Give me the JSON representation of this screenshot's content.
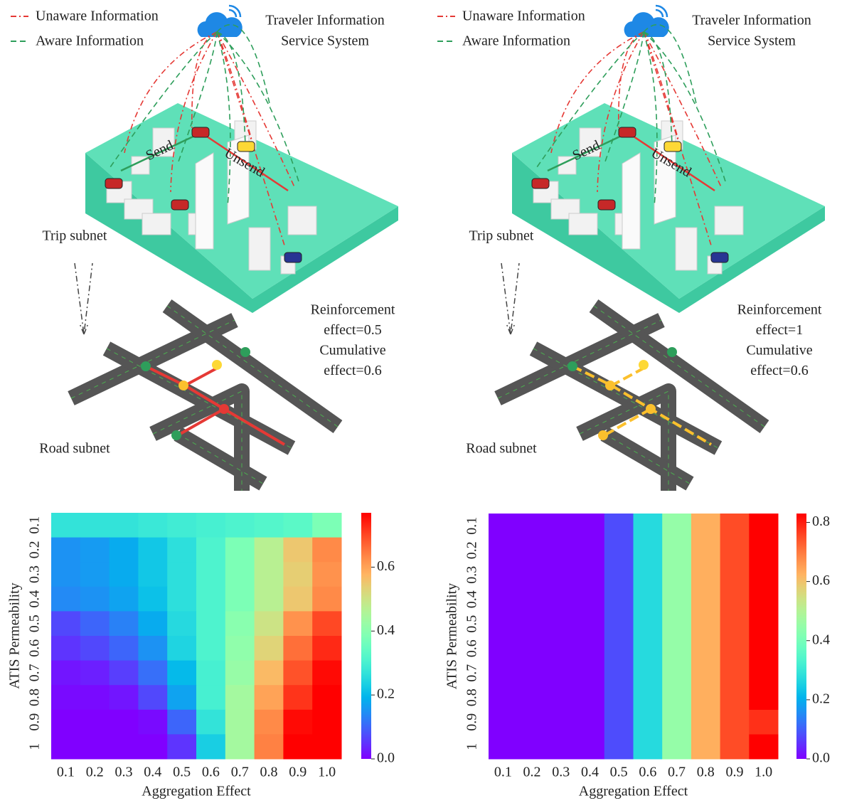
{
  "panels": [
    {
      "legend": [
        "Unaware Information",
        "Aware Information"
      ],
      "system_title": [
        "Traveler Information",
        "Service System"
      ],
      "send": "Send",
      "unsend": "Unsend",
      "trip_subnet": "Trip subnet",
      "road_subnet": "Road subnet",
      "effects": [
        "Reinforcement",
        "effect=0.5",
        "Cumulative",
        "effect=0.6"
      ]
    },
    {
      "legend": [
        "Unaware Information",
        "Aware Information"
      ],
      "system_title": [
        "Traveler Information",
        "Service System"
      ],
      "send": "Send",
      "unsend": "Unsend",
      "trip_subnet": "Trip subnet",
      "road_subnet": "Road subnet",
      "effects": [
        "Reinforcement",
        "effect=1",
        "Cumulative",
        "effect=0.6"
      ]
    }
  ],
  "chart_data": [
    {
      "type": "heatmap",
      "colormap": "rainbow",
      "xlabel": "Aggregation  Effect",
      "ylabel": "ATIS  Permeability",
      "x_categories": [
        "0.1",
        "0.2",
        "0.3",
        "0.4",
        "0.5",
        "0.6",
        "0.7",
        "0.8",
        "0.9",
        "1.0"
      ],
      "y_categories": [
        "0.1",
        "0.2",
        "0.3",
        "0.4",
        "0.5",
        "0.6",
        "0.7",
        "0.8",
        "0.9",
        "1"
      ],
      "z": [
        [
          0.27,
          0.27,
          0.27,
          0.28,
          0.29,
          0.3,
          0.31,
          0.32,
          0.33,
          0.38
        ],
        [
          0.15,
          0.16,
          0.18,
          0.22,
          0.26,
          0.31,
          0.38,
          0.47,
          0.55,
          0.63
        ],
        [
          0.15,
          0.16,
          0.18,
          0.22,
          0.26,
          0.31,
          0.38,
          0.47,
          0.54,
          0.62
        ],
        [
          0.14,
          0.15,
          0.17,
          0.21,
          0.26,
          0.31,
          0.38,
          0.47,
          0.55,
          0.63
        ],
        [
          0.07,
          0.1,
          0.13,
          0.18,
          0.25,
          0.31,
          0.4,
          0.5,
          0.62,
          0.7
        ],
        [
          0.05,
          0.07,
          0.1,
          0.15,
          0.24,
          0.31,
          0.41,
          0.53,
          0.66,
          0.73
        ],
        [
          0.02,
          0.03,
          0.06,
          0.11,
          0.2,
          0.3,
          0.42,
          0.57,
          0.69,
          0.76
        ],
        [
          0.01,
          0.01,
          0.02,
          0.07,
          0.17,
          0.3,
          0.44,
          0.6,
          0.72,
          0.77
        ],
        [
          0.0,
          0.0,
          0.0,
          0.01,
          0.1,
          0.27,
          0.44,
          0.63,
          0.76,
          0.77
        ],
        [
          0.0,
          0.0,
          0.0,
          0.0,
          0.05,
          0.23,
          0.44,
          0.64,
          0.77,
          0.77
        ]
      ],
      "clim": [
        0,
        0.77
      ],
      "cticks": [
        {
          "value": 0,
          "label": "0.0"
        },
        0.2,
        0.4,
        0.6
      ]
    },
    {
      "type": "heatmap",
      "colormap": "rainbow",
      "xlabel": "Aggregation  Effect",
      "ylabel": "ATIS  Permeability",
      "x_categories": [
        "0.1",
        "0.2",
        "0.3",
        "0.4",
        "0.5",
        "0.6",
        "0.7",
        "0.8",
        "0.9",
        "1.0"
      ],
      "y_categories": [
        "0.1",
        "0.2",
        "0.3",
        "0.4",
        "0.5",
        "0.6",
        "0.7",
        "0.8",
        "0.9",
        "1"
      ],
      "z": [
        [
          0,
          0,
          0,
          0,
          0.08,
          0.27,
          0.45,
          0.63,
          0.75,
          0.83
        ],
        [
          0,
          0,
          0,
          0,
          0.08,
          0.27,
          0.45,
          0.63,
          0.75,
          0.83
        ],
        [
          0,
          0,
          0,
          0,
          0.08,
          0.27,
          0.45,
          0.63,
          0.75,
          0.83
        ],
        [
          0,
          0,
          0,
          0,
          0.08,
          0.27,
          0.45,
          0.63,
          0.75,
          0.83
        ],
        [
          0,
          0,
          0,
          0,
          0.08,
          0.27,
          0.45,
          0.63,
          0.75,
          0.83
        ],
        [
          0,
          0,
          0,
          0,
          0.08,
          0.27,
          0.45,
          0.63,
          0.75,
          0.83
        ],
        [
          0,
          0,
          0,
          0,
          0.08,
          0.27,
          0.45,
          0.63,
          0.75,
          0.83
        ],
        [
          0,
          0,
          0,
          0,
          0.08,
          0.27,
          0.45,
          0.63,
          0.75,
          0.83
        ],
        [
          0,
          0,
          0,
          0,
          0.08,
          0.27,
          0.45,
          0.63,
          0.75,
          0.78
        ],
        [
          0,
          0,
          0,
          0,
          0.08,
          0.27,
          0.45,
          0.63,
          0.75,
          0.83
        ]
      ],
      "clim": [
        0,
        0.83
      ],
      "cticks": [
        {
          "value": 0,
          "label": "0.0"
        },
        0.2,
        0.4,
        0.6,
        0.8
      ]
    }
  ]
}
